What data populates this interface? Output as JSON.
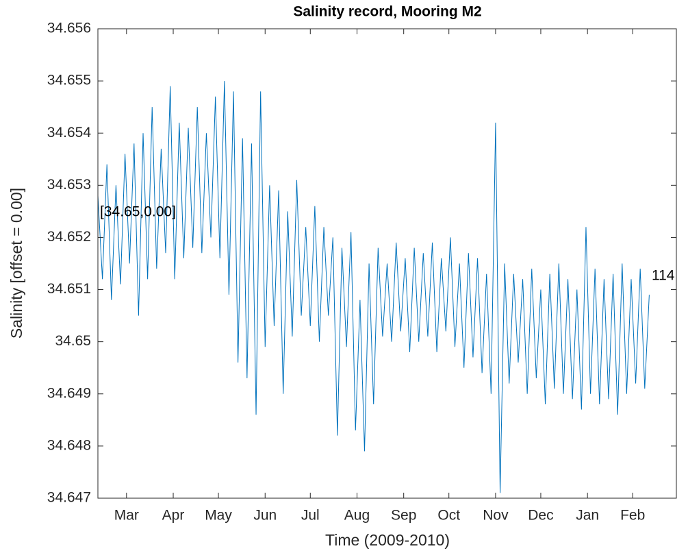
{
  "chart_data": {
    "type": "line",
    "title": "Salinity record, Mooring M2",
    "x_label": "Time (2009-2010)",
    "y_label": "Salinity [offset = 0.00]",
    "annotations": [
      "[34.65,0.00]",
      "114"
    ],
    "color": "#0072bd",
    "xlim": [
      0,
      384
    ],
    "xticks": [
      {
        "value": 19,
        "label": "Mar"
      },
      {
        "value": 50,
        "label": "Apr"
      },
      {
        "value": 80,
        "label": "May"
      },
      {
        "value": 111,
        "label": "Jun"
      },
      {
        "value": 141,
        "label": "Jul"
      },
      {
        "value": 172,
        "label": "Aug"
      },
      {
        "value": 203,
        "label": "Sep"
      },
      {
        "value": 233,
        "label": "Oct"
      },
      {
        "value": 264,
        "label": "Nov"
      },
      {
        "value": 294,
        "label": "Dec"
      },
      {
        "value": 325,
        "label": "Jan"
      },
      {
        "value": 355,
        "label": "Feb"
      }
    ],
    "ylim": [
      34.647,
      34.656
    ],
    "yticks": [
      34.647,
      34.648,
      34.649,
      34.65,
      34.651,
      34.652,
      34.653,
      34.654,
      34.655,
      34.656
    ],
    "x": [
      0,
      3,
      6,
      9,
      12,
      15,
      18,
      21,
      24,
      27,
      30,
      33,
      36,
      39,
      42,
      45,
      48,
      51,
      54,
      57,
      60,
      63,
      66,
      69,
      72,
      75,
      78,
      81,
      84,
      87,
      90,
      93,
      96,
      99,
      102,
      105,
      108,
      111,
      114,
      117,
      120,
      123,
      126,
      129,
      132,
      135,
      138,
      141,
      144,
      147,
      150,
      153,
      156,
      159,
      162,
      165,
      168,
      171,
      174,
      177,
      180,
      183,
      186,
      189,
      192,
      195,
      198,
      201,
      204,
      207,
      210,
      213,
      216,
      219,
      222,
      225,
      228,
      231,
      234,
      237,
      240,
      243,
      246,
      249,
      252,
      255,
      258,
      261,
      264,
      267,
      270,
      273,
      276,
      279,
      282,
      285,
      288,
      291,
      294,
      297,
      300,
      303,
      306,
      309,
      312,
      315,
      318,
      321,
      324,
      327,
      330,
      333,
      336,
      339,
      342,
      345,
      348,
      351,
      354,
      357,
      360,
      363,
      366
    ],
    "values": [
      34.6528,
      34.6512,
      34.6534,
      34.6508,
      34.653,
      34.6511,
      34.6536,
      34.6515,
      34.6538,
      34.6505,
      34.654,
      34.6512,
      34.6545,
      34.6514,
      34.6537,
      34.6517,
      34.6549,
      34.6512,
      34.6542,
      34.6516,
      34.6541,
      34.6518,
      34.6545,
      34.6517,
      34.654,
      34.652,
      34.6547,
      34.6516,
      34.655,
      34.6509,
      34.6548,
      34.6496,
      34.6539,
      34.6493,
      34.6538,
      34.6486,
      34.6548,
      34.6499,
      34.653,
      34.6503,
      34.6529,
      34.649,
      34.6525,
      34.6501,
      34.6531,
      34.6505,
      34.6522,
      34.6503,
      34.6526,
      34.65,
      34.6522,
      34.6505,
      34.652,
      34.6482,
      34.6518,
      34.6499,
      34.6521,
      34.6483,
      34.6508,
      34.6479,
      34.6515,
      34.6488,
      34.6518,
      34.6501,
      34.6515,
      34.65,
      34.6519,
      34.6502,
      34.6516,
      34.6498,
      34.6518,
      34.65,
      34.6517,
      34.6501,
      34.6519,
      34.6498,
      34.6516,
      34.6502,
      34.652,
      34.6499,
      34.6515,
      34.6495,
      34.6517,
      34.6497,
      34.6516,
      34.6494,
      34.6513,
      34.649,
      34.6542,
      34.6471,
      34.6515,
      34.6492,
      34.6513,
      34.6496,
      34.6512,
      34.649,
      34.6514,
      34.6493,
      34.651,
      34.6488,
      34.6513,
      34.6491,
      34.6515,
      34.649,
      34.6512,
      34.6489,
      34.651,
      34.6487,
      34.6522,
      34.649,
      34.6514,
      34.6488,
      34.6512,
      34.6489,
      34.6513,
      34.6486,
      34.6515,
      34.649,
      34.6512,
      34.6492,
      34.6514,
      34.6491,
      34.6509
    ]
  }
}
